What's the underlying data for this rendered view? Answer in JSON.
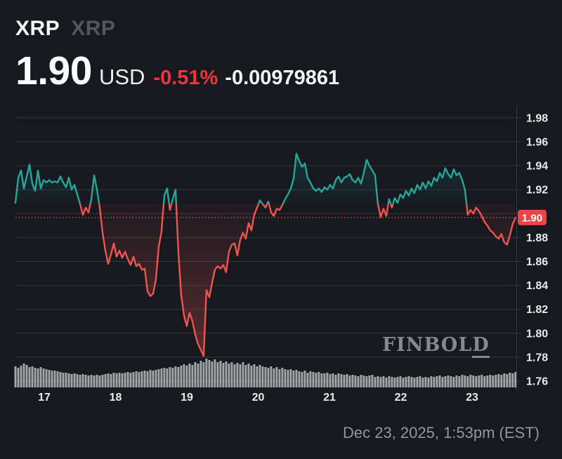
{
  "header": {
    "symbol": "XRP",
    "name": "XRP",
    "price": "1.90",
    "currency": "USD",
    "change_percent": "-0.51%",
    "change_value": "-0.00979861"
  },
  "watermark": {
    "text_main": "FINBOL",
    "text_last": "D"
  },
  "footer": {
    "timestamp": "Dec 23, 2025, 1:53pm (EST)"
  },
  "colors": {
    "background": "#17191f",
    "teal": "#26a69a",
    "red_line": "#f05451",
    "accent_red_text": "#ee353d",
    "badge_red": "#ef4348",
    "grid": "#33373e",
    "axis_text": "#e9eaeb",
    "symbol_dim": "#53565d",
    "footer_text": "#94969b",
    "watermark": "#85888e",
    "volume_bar": "#cbcdd0"
  },
  "chart_data": {
    "type": "line",
    "symbol": "XRP/USD",
    "x_unit": "day of Dec 2025",
    "y_unit": "USD",
    "x_tick_labels": [
      "17",
      "18",
      "19",
      "20",
      "21",
      "22",
      "23"
    ],
    "x_tick_days": [
      17,
      18,
      19,
      20,
      21,
      22,
      23
    ],
    "x_start_day": 16.596,
    "x_step_day": 0.0394,
    "y_ticks": [
      1.98,
      1.96,
      1.94,
      1.92,
      1.9,
      1.88,
      1.86,
      1.84,
      1.82,
      1.8,
      1.78,
      1.76
    ],
    "y_range": [
      1.755,
      1.985
    ],
    "grid": true,
    "baseline_price": 1.908,
    "last_price": 1.8967,
    "last_price_label": "1.90",
    "prices": [
      1.909,
      1.93,
      1.936,
      1.921,
      1.931,
      1.941,
      1.925,
      1.919,
      1.936,
      1.921,
      1.928,
      1.926,
      1.928,
      1.926,
      1.927,
      1.926,
      1.931,
      1.926,
      1.922,
      1.93,
      1.92,
      1.924,
      1.916,
      1.908,
      1.899,
      1.905,
      1.901,
      1.912,
      1.932,
      1.92,
      1.905,
      1.884,
      1.869,
      1.858,
      1.866,
      1.875,
      1.864,
      1.869,
      1.863,
      1.868,
      1.862,
      1.857,
      1.864,
      1.856,
      1.858,
      1.853,
      1.854,
      1.835,
      1.831,
      1.833,
      1.845,
      1.872,
      1.885,
      1.915,
      1.921,
      1.903,
      1.912,
      1.92,
      1.868,
      1.832,
      1.815,
      1.806,
      1.817,
      1.81,
      1.799,
      1.791,
      1.786,
      1.781,
      1.836,
      1.83,
      1.842,
      1.853,
      1.856,
      1.854,
      1.857,
      1.851,
      1.868,
      1.874,
      1.875,
      1.865,
      1.878,
      1.884,
      1.879,
      1.892,
      1.886,
      1.899,
      1.905,
      1.911,
      1.908,
      1.905,
      1.91,
      1.901,
      1.898,
      1.904,
      1.903,
      1.907,
      1.912,
      1.916,
      1.921,
      1.929,
      1.95,
      1.944,
      1.939,
      1.942,
      1.93,
      1.926,
      1.921,
      1.919,
      1.921,
      1.918,
      1.922,
      1.92,
      1.924,
      1.921,
      1.928,
      1.931,
      1.926,
      1.93,
      1.931,
      1.933,
      1.928,
      1.926,
      1.93,
      1.925,
      1.934,
      1.945,
      1.94,
      1.936,
      1.932,
      1.908,
      1.897,
      1.904,
      1.898,
      1.912,
      1.905,
      1.913,
      1.909,
      1.916,
      1.913,
      1.919,
      1.915,
      1.921,
      1.917,
      1.924,
      1.92,
      1.926,
      1.921,
      1.927,
      1.923,
      1.93,
      1.927,
      1.934,
      1.93,
      1.938,
      1.933,
      1.93,
      1.937,
      1.932,
      1.934,
      1.928,
      1.92,
      1.899,
      1.903,
      1.9,
      1.905,
      1.902,
      1.898,
      1.893,
      1.89,
      1.886,
      1.884,
      1.881,
      1.879,
      1.883,
      1.876,
      1.874,
      1.882,
      1.891,
      1.8967
    ],
    "volumes_rel": [
      30,
      28,
      31,
      34,
      32,
      29,
      30,
      28,
      27,
      29,
      27,
      26,
      25,
      24,
      24,
      23,
      22,
      21,
      21,
      20,
      19,
      20,
      19,
      18,
      19,
      18,
      17,
      18,
      17,
      18,
      17,
      18,
      19,
      20,
      19,
      21,
      20,
      21,
      20,
      21,
      22,
      21,
      22,
      23,
      22,
      23,
      24,
      23,
      25,
      24,
      25,
      26,
      27,
      28,
      27,
      29,
      28,
      30,
      29,
      31,
      33,
      31,
      34,
      32,
      36,
      34,
      38,
      36,
      41,
      39,
      37,
      40,
      36,
      38,
      35,
      37,
      34,
      36,
      33,
      35,
      33,
      36,
      32,
      34,
      31,
      33,
      30,
      32,
      30,
      29,
      28,
      30,
      27,
      29,
      26,
      28,
      26,
      25,
      26,
      24,
      25,
      23,
      22,
      24,
      21,
      23,
      22,
      21,
      22,
      20,
      20,
      21,
      19,
      20,
      18,
      20,
      19,
      18,
      19,
      17,
      18,
      17,
      16,
      18,
      17,
      16,
      17,
      18,
      15,
      16,
      15,
      16,
      14,
      16,
      15,
      14,
      15,
      16,
      14,
      15,
      16,
      15,
      14,
      15,
      16,
      14,
      15,
      14,
      16,
      15,
      16,
      17,
      15,
      16,
      17,
      16,
      15,
      17,
      16,
      18,
      17,
      16,
      18,
      17,
      16,
      17,
      18,
      16,
      17,
      18,
      17,
      18,
      19,
      18,
      20,
      19,
      21,
      20,
      22
    ]
  }
}
